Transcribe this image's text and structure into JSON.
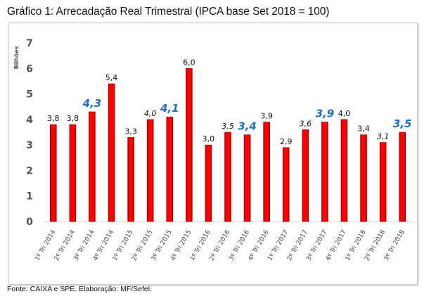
{
  "title": "Gráfico 1: Arrecadação Real Trimestral (IPCA base Set 2018 = 100)",
  "source": "Fonte: CAIXA e SPE. Elaboração: MF/Sefel.",
  "chart_data": {
    "type": "bar",
    "title": "Gráfico 1: Arrecadação Real Trimestral (IPCA base Set 2018 = 100)",
    "xlabel": "",
    "ylabel": "Bilhões",
    "ylim": [
      0,
      7
    ],
    "yticks": [
      0,
      1,
      2,
      3,
      4,
      5,
      6,
      7
    ],
    "grid": false,
    "legend": "none",
    "categories": [
      "1º Tri 2014",
      "2º Tri 2014",
      "3º Tri 2014",
      "4º Tri 2014",
      "1º Tri 2015",
      "2º Tri 2015",
      "3º Tri 2015",
      "4º Tri 2015",
      "1º Tri 2016",
      "2º Tri 2016",
      "3º Tri 2016",
      "4º Tri 2016",
      "1º Tri 2017",
      "2º Tri 2017",
      "3º Tri 2017",
      "4º Tri 2017",
      "1º Tri 2018",
      "2º Tri 2018",
      "3º Tri 2018"
    ],
    "values": [
      3.8,
      3.8,
      4.3,
      5.4,
      3.3,
      4.0,
      4.1,
      6.0,
      3.0,
      3.5,
      3.4,
      3.9,
      2.9,
      3.6,
      3.9,
      4.0,
      3.4,
      3.1,
      3.5
    ],
    "labels": [
      "3,8",
      "3,8",
      "4,3",
      "5,4",
      "3,3",
      "4,0",
      "4,1",
      "6,0",
      "3,0",
      "3,5",
      "3,4",
      "3,9",
      "2,9",
      "3,6",
      "3,9",
      "4,0",
      "3,4",
      "3,1",
      "3,5"
    ],
    "label_styles": [
      "normal",
      "normal",
      "highlight",
      "normal",
      "normal",
      "italic",
      "highlight",
      "normal",
      "normal",
      "italic",
      "highlight",
      "normal",
      "normal",
      "italic",
      "highlight",
      "normal",
      "normal",
      "italic",
      "highlight"
    ],
    "colors": {
      "bar_fill": "#ff0000",
      "bar_edge": "#a00000",
      "highlight_label": "#1f6fb5",
      "axis": "#d9d9d9"
    }
  }
}
